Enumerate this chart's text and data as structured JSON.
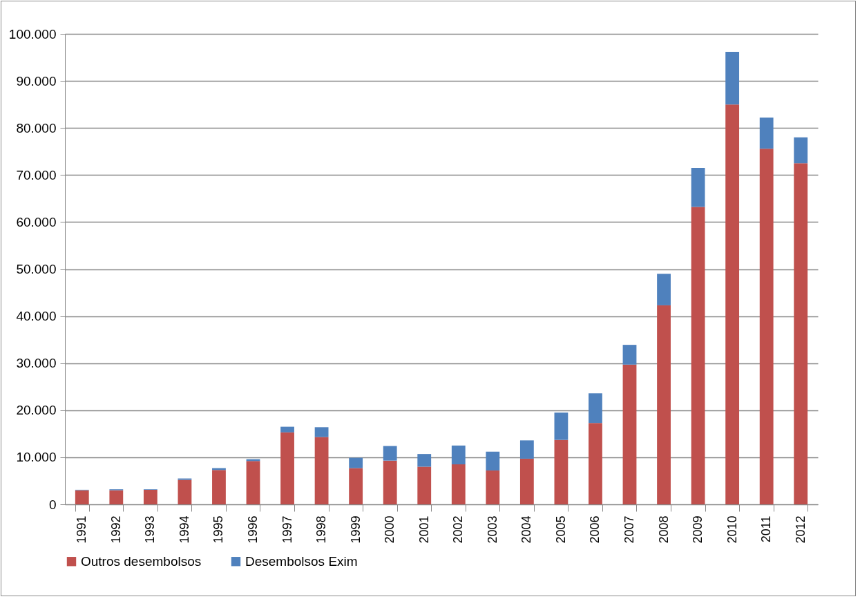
{
  "chart_data": {
    "type": "bar",
    "stacked": true,
    "grid": "y",
    "legend": "bottom",
    "categories": [
      "1991",
      "1992",
      "1993",
      "1994",
      "1995",
      "1996",
      "1997",
      "1998",
      "1999",
      "2000",
      "2001",
      "2002",
      "2003",
      "2004",
      "2005",
      "2006",
      "2007",
      "2008",
      "2009",
      "2010",
      "2011",
      "2012"
    ],
    "series": [
      {
        "name": "Outros desembolsos",
        "color": "#c0504d",
        "values": [
          3000,
          3000,
          3100,
          5200,
          7300,
          9200,
          15300,
          14300,
          7700,
          9300,
          8000,
          8500,
          7200,
          9700,
          13700,
          17300,
          29700,
          42300,
          63200,
          85000,
          75600,
          72500
        ]
      },
      {
        "name": "Desembolsos Exim",
        "color": "#4f81bd",
        "values": [
          100,
          200,
          100,
          300,
          400,
          400,
          1200,
          2100,
          2200,
          3100,
          2700,
          4000,
          4000,
          3900,
          5800,
          6300,
          4200,
          6700,
          8300,
          11200,
          6600,
          5500
        ]
      }
    ],
    "ylim": [
      0,
      100000
    ],
    "yticks": [
      0,
      {
        "value": 10000,
        "label": "10.000"
      },
      {
        "value": 20000,
        "label": "20.000"
      },
      {
        "value": 30000,
        "label": "30.000"
      },
      {
        "value": 40000,
        "label": "40.000"
      },
      {
        "value": 50000,
        "label": "50.000"
      },
      {
        "value": 60000,
        "label": "60.000"
      },
      {
        "value": 70000,
        "label": "70.000"
      },
      {
        "value": 80000,
        "label": "80.000"
      },
      {
        "value": 90000,
        "label": "90.000"
      },
      {
        "value": 100000,
        "label": "100.000"
      }
    ]
  }
}
